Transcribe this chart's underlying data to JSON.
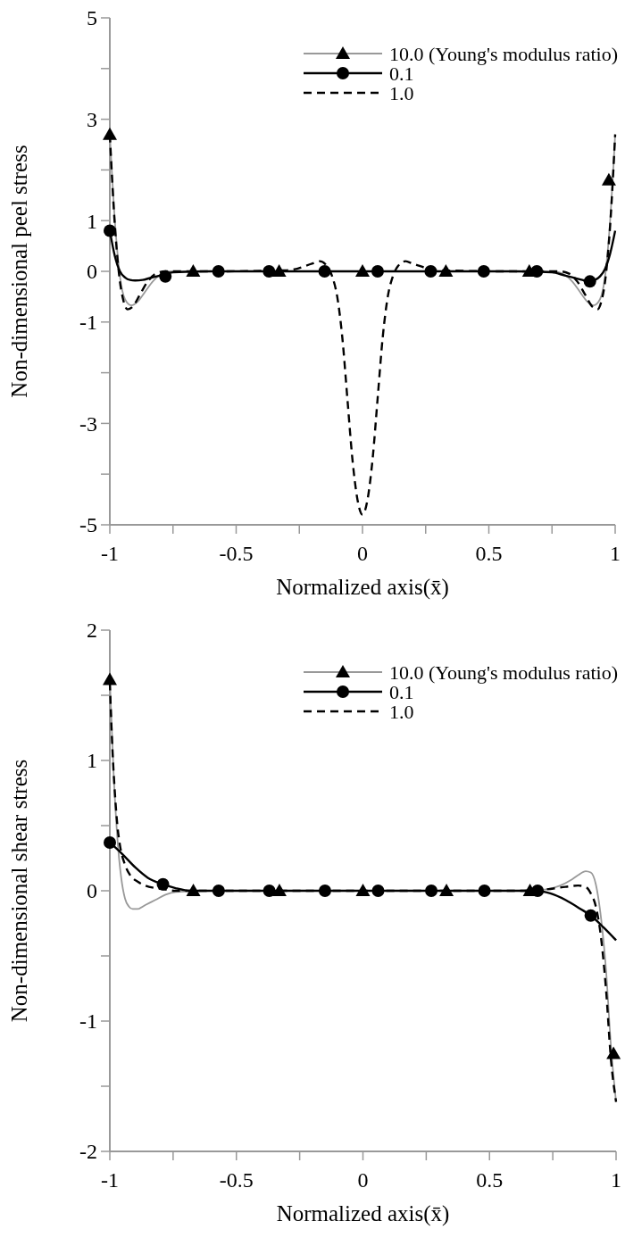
{
  "chart_data": [
    {
      "type": "line",
      "xlabel": "Normalized axis(x̄)",
      "ylabel": "Non-dimensional peel stress",
      "xlim": [
        -1,
        1
      ],
      "ylim": [
        -5,
        5
      ],
      "xticks": [
        -1,
        {
          "value": -0.75,
          "label": null
        },
        -0.5,
        {
          "value": -0.25,
          "label": null
        },
        0,
        {
          "value": 0.25,
          "label": null
        },
        0.5,
        {
          "value": 0.75,
          "label": null
        },
        1
      ],
      "yticks": [
        -5,
        {
          "value": -4,
          "label": null
        },
        -3,
        {
          "value": -2,
          "label": null
        },
        -1,
        0,
        1,
        {
          "value": 2,
          "label": null
        },
        3,
        {
          "value": 4,
          "label": null
        },
        5
      ],
      "grid": false,
      "legend": "top right",
      "series": [
        {
          "name": "10.0 (Young's modulus ratio)",
          "color": "#999999",
          "line_style": "solid",
          "x": [
            -1,
            -0.98,
            -0.96,
            -0.94,
            -0.915,
            -0.89,
            -0.86,
            -0.83,
            -0.8,
            -0.75,
            -0.6,
            0,
            0.6,
            0.75,
            0.8,
            0.83,
            0.86,
            0.89,
            0.915,
            0.94,
            0.96,
            0.98,
            1
          ],
          "values": [
            2.7,
            1.0,
            -0.1,
            -0.55,
            -0.67,
            -0.6,
            -0.4,
            -0.2,
            -0.07,
            0,
            0,
            0,
            0,
            0,
            -0.07,
            -0.2,
            -0.4,
            -0.6,
            -0.67,
            -0.55,
            -0.1,
            1.0,
            2.7
          ]
        },
        {
          "type": "scatter",
          "color": "#000000",
          "marker": "triangle",
          "x": [
            -1,
            -0.67,
            -0.33,
            0,
            0.33,
            0.66,
            0.975
          ],
          "values": [
            2.7,
            0,
            0,
            0,
            0,
            0,
            1.8
          ]
        },
        {
          "name": "0.1",
          "color": "#000000",
          "line_style": "solid",
          "x": [
            -1,
            -0.98,
            -0.96,
            -0.94,
            -0.92,
            -0.9,
            -0.87,
            -0.84,
            -0.8,
            -0.75,
            -0.6,
            0,
            0.6,
            0.75,
            0.8,
            0.84,
            0.87,
            0.9,
            0.92,
            0.94,
            0.96,
            0.98,
            1
          ],
          "values": [
            0.8,
            0.3,
            0.0,
            -0.12,
            -0.17,
            -0.18,
            -0.17,
            -0.13,
            -0.08,
            -0.02,
            0,
            0,
            0,
            -0.02,
            -0.08,
            -0.13,
            -0.17,
            -0.2,
            -0.17,
            -0.1,
            0.05,
            0.35,
            0.8
          ]
        },
        {
          "type": "scatter",
          "color": "#000000",
          "marker": "circle",
          "x": [
            -1,
            -0.78,
            -0.57,
            -0.37,
            -0.15,
            0.06,
            0.27,
            0.48,
            0.69,
            0.9
          ],
          "values": [
            0.8,
            -0.1,
            0,
            0,
            0,
            0,
            0,
            0,
            0,
            -0.2
          ]
        },
        {
          "name": "1.0",
          "color": "#000000",
          "line_style": "dashed",
          "x": [
            -1,
            -0.98,
            -0.96,
            -0.945,
            -0.93,
            -0.91,
            -0.88,
            -0.85,
            -0.82,
            -0.78,
            -0.6,
            -0.3,
            -0.2,
            -0.17,
            -0.14,
            -0.12,
            -0.1,
            -0.08,
            -0.06,
            -0.04,
            -0.02,
            0,
            0.02,
            0.04,
            0.06,
            0.08,
            0.1,
            0.12,
            0.14,
            0.17,
            0.2,
            0.3,
            0.6,
            0.78,
            0.82,
            0.85,
            0.88,
            0.91,
            0.93,
            0.945,
            0.96,
            0.98,
            1
          ],
          "values": [
            2.7,
            0.9,
            -0.2,
            -0.6,
            -0.75,
            -0.7,
            -0.45,
            -0.2,
            -0.05,
            0,
            0,
            0.02,
            0.15,
            0.2,
            0.1,
            -0.1,
            -0.5,
            -1.3,
            -2.5,
            -3.7,
            -4.5,
            -4.8,
            -4.5,
            -3.7,
            -2.5,
            -1.3,
            -0.5,
            -0.1,
            0.1,
            0.2,
            0.15,
            0.02,
            0,
            0,
            -0.05,
            -0.2,
            -0.45,
            -0.7,
            -0.75,
            -0.6,
            -0.2,
            0.9,
            2.7
          ]
        }
      ]
    },
    {
      "type": "line",
      "xlabel": "Normalized axis(x̄)",
      "ylabel": "Non-dimensional shear stress",
      "xlim": [
        -1,
        1
      ],
      "ylim": [
        -2,
        2
      ],
      "xticks": [
        -1,
        {
          "value": -0.75,
          "label": null
        },
        -0.5,
        {
          "value": -0.25,
          "label": null
        },
        0,
        {
          "value": 0.25,
          "label": null
        },
        0.5,
        {
          "value": 0.75,
          "label": null
        },
        1
      ],
      "yticks": [
        -2,
        {
          "value": -1.5,
          "label": null
        },
        -1,
        {
          "value": -0.5,
          "label": null
        },
        0,
        {
          "value": 0.5,
          "label": null
        },
        1,
        {
          "value": 1.5,
          "label": null
        },
        2
      ],
      "grid": false,
      "legend": "top right",
      "series": [
        {
          "name": "10.0 (Young's modulus ratio)",
          "color": "#999999",
          "line_style": "solid",
          "x": [
            -1,
            -0.985,
            -0.97,
            -0.955,
            -0.94,
            -0.925,
            -0.91,
            -0.89,
            -0.86,
            -0.82,
            -0.78,
            -0.74,
            -0.6,
            0,
            0.6,
            0.72,
            0.78,
            0.82,
            0.85,
            0.88,
            0.9,
            0.92,
            0.94,
            0.96,
            0.98,
            1
          ],
          "values": [
            1.62,
            0.9,
            0.4,
            0.1,
            -0.06,
            -0.12,
            -0.14,
            -0.14,
            -0.11,
            -0.07,
            -0.03,
            -0.01,
            0,
            0,
            0,
            0.01,
            0.04,
            0.08,
            0.12,
            0.15,
            0.14,
            0.05,
            -0.2,
            -0.6,
            -1.2,
            -1.62
          ]
        },
        {
          "type": "scatter",
          "color": "#000000",
          "marker": "triangle",
          "x": [
            -1,
            -0.67,
            -0.33,
            0,
            0.33,
            0.66,
            0.99
          ],
          "values": [
            1.62,
            0,
            0,
            0,
            0,
            0,
            -1.25
          ]
        },
        {
          "name": "0.1",
          "color": "#000000",
          "line_style": "solid",
          "x": [
            -1,
            -0.95,
            -0.9,
            -0.85,
            -0.79,
            -0.74,
            -0.68,
            0,
            0.68,
            0.74,
            0.8,
            0.86,
            0.9,
            0.95,
            1
          ],
          "values": [
            0.37,
            0.28,
            0.18,
            0.1,
            0.05,
            0.02,
            0,
            0,
            0,
            -0.02,
            -0.07,
            -0.14,
            -0.19,
            -0.28,
            -0.38
          ]
        },
        {
          "type": "scatter",
          "color": "#000000",
          "marker": "circle",
          "x": [
            -1,
            -0.79,
            -0.57,
            -0.37,
            -0.15,
            0.06,
            0.27,
            0.48,
            0.69,
            0.9
          ],
          "values": [
            0.37,
            0.05,
            0,
            0,
            0,
            0,
            0,
            0,
            0,
            -0.19
          ]
        },
        {
          "name": "1.0",
          "color": "#000000",
          "line_style": "dashed",
          "x": [
            -1,
            -0.99,
            -0.98,
            -0.97,
            -0.96,
            -0.94,
            -0.92,
            -0.89,
            -0.86,
            -0.82,
            -0.78,
            -0.74,
            -0.6,
            0,
            0.6,
            0.72,
            0.8,
            0.85,
            0.88,
            0.9,
            0.92,
            0.94,
            0.96,
            0.98,
            1
          ],
          "values": [
            1.6,
            1.1,
            0.75,
            0.5,
            0.35,
            0.2,
            0.12,
            0.07,
            0.04,
            0.02,
            0.01,
            0,
            0,
            0,
            0,
            0.01,
            0.03,
            0.04,
            0.03,
            -0.02,
            -0.12,
            -0.35,
            -0.75,
            -1.3,
            -1.62
          ]
        }
      ]
    }
  ]
}
